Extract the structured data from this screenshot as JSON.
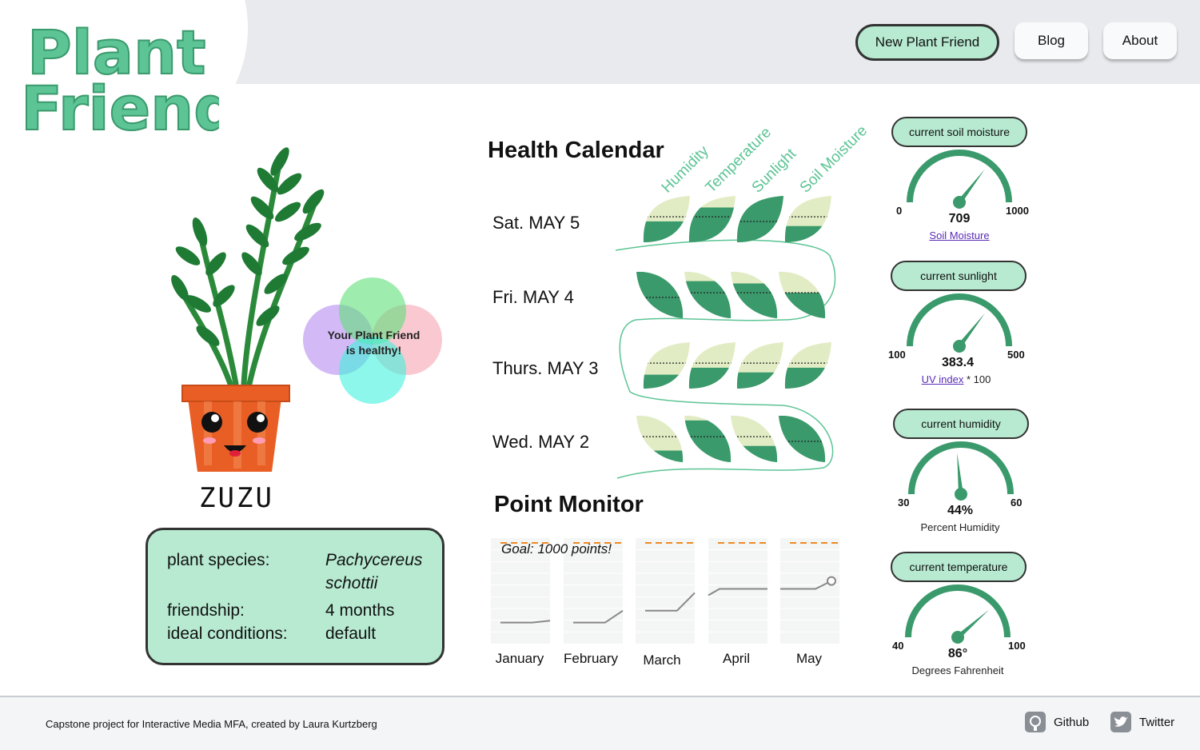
{
  "header": {
    "logo_line1": "Plant",
    "logo_line2": "Friend",
    "nav": {
      "new_plant": "New Plant Friend",
      "blog": "Blog",
      "about": "About"
    }
  },
  "plant": {
    "name": "ZUZU",
    "status_line1": "Your Plant Friend",
    "status_line2": "is healthy!",
    "details": [
      {
        "label": "plant species:",
        "value_line1": "Pachycereus",
        "value_line2": "schottii"
      },
      {
        "label": "friendship:",
        "value": "4 months"
      },
      {
        "label": "ideal conditions:",
        "value": "default"
      }
    ]
  },
  "health_calendar": {
    "title": "Health Calendar",
    "columns": [
      "Humidity",
      "Temperature",
      "Sunlight",
      "Soil Moisture"
    ],
    "days": [
      {
        "label": "Sat. MAY 5",
        "levels": [
          0.45,
          0.75,
          1.0,
          0.35
        ]
      },
      {
        "label": "Fri. MAY 4",
        "levels": [
          1.0,
          0.8,
          0.75,
          0.55
        ]
      },
      {
        "label": "Thurs. MAY 3",
        "levels": [
          0.3,
          0.45,
          0.35,
          0.45
        ]
      },
      {
        "label": "Wed. MAY 2",
        "levels": [
          0.25,
          0.9,
          0.35,
          1.0
        ]
      }
    ]
  },
  "point_monitor": {
    "title": "Point Monitor",
    "goal_text": "Goal: 1000 points!",
    "months": [
      "January",
      "February",
      "March",
      "April",
      "May"
    ]
  },
  "chart_data": {
    "type": "line",
    "title": "Point Monitor",
    "categories": [
      "January",
      "February",
      "March",
      "April",
      "May"
    ],
    "goal": 1000,
    "series": [
      {
        "values": [
          [
            180,
            200
          ],
          [
            180,
            300
          ],
          [
            300,
            480
          ],
          [
            520,
            520
          ],
          [
            520,
            600
          ]
        ]
      }
    ]
  },
  "gauges": [
    {
      "pill": "current soil moisture",
      "min": "0",
      "max": "1000",
      "value": "709",
      "fraction": 0.709,
      "caption_link": "Soil Moisture",
      "caption_rest": ""
    },
    {
      "pill": "current sunlight",
      "min": "100",
      "max": "500",
      "value": "383.4",
      "fraction": 0.71,
      "caption_link": "UV index",
      "caption_rest": " * 100"
    },
    {
      "pill": "current humidity",
      "min": "30",
      "max": "60",
      "value": "44%",
      "fraction": 0.47,
      "caption_link": "",
      "caption_rest": "Percent Humidity"
    },
    {
      "pill": "current temperature",
      "min": "40",
      "max": "100",
      "value": "86°",
      "fraction": 0.77,
      "caption_link": "",
      "caption_rest": "Degrees Fahrenheit"
    }
  ],
  "footer": {
    "credit": "Capstone project for Interactive Media MFA, created by Laura Kurtzberg",
    "github": "Github",
    "twitter": "Twitter"
  },
  "colors": {
    "accent": "#5cc495",
    "accent_dark": "#3a9a6c",
    "leaf_light": "#e2ecc4",
    "pill_bg": "#b7ead1",
    "goal_line": "#f08a24"
  }
}
